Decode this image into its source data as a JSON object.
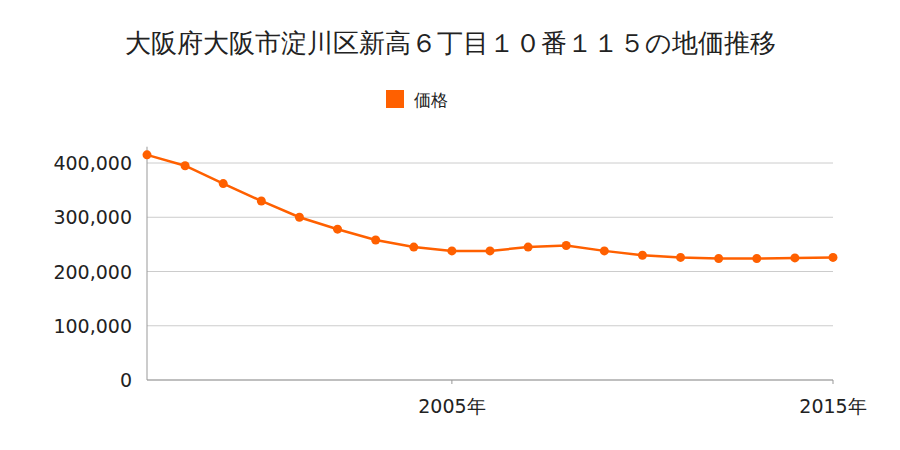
{
  "chart_data": {
    "type": "line",
    "title": "大阪府大阪市淀川区新高６丁目１０番１１５の地価推移",
    "x": [
      1997,
      1998,
      1999,
      2000,
      2001,
      2002,
      2003,
      2004,
      2005,
      2006,
      2007,
      2008,
      2009,
      2010,
      2011,
      2012,
      2013,
      2014,
      2015
    ],
    "series": [
      {
        "name": "価格",
        "color": "#ff6000",
        "marker": "circle",
        "values": [
          415000,
          395000,
          362000,
          330000,
          300000,
          278000,
          258000,
          245000,
          238000,
          238000,
          245000,
          248000,
          238000,
          230000,
          226000,
          224000,
          224000,
          225000,
          226000
        ]
      }
    ],
    "xlim": [
      1997,
      2015
    ],
    "xticks": [
      {
        "value": 2005,
        "label": "2005年"
      },
      {
        "value": 2015,
        "label": "2015年"
      }
    ],
    "ylim": [
      0,
      430000
    ],
    "yticks": [
      0,
      {
        "value": 100000,
        "label": "100,000"
      },
      {
        "value": 200000,
        "label": "200,000"
      },
      {
        "value": 300000,
        "label": "300,000"
      },
      {
        "value": 400000,
        "label": "400,000"
      }
    ],
    "grid": true,
    "legend": "top"
  }
}
